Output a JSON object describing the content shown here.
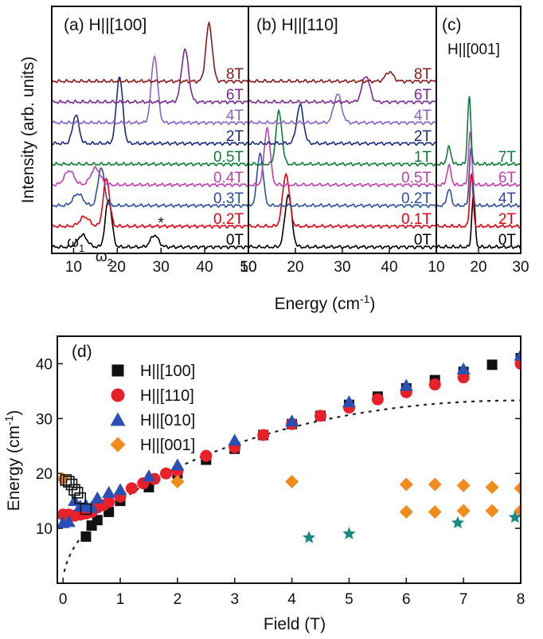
{
  "chart_data": [
    {
      "type": "line",
      "title": "",
      "ylabel": "Intensity (arb. units)",
      "xlabel": "Energy (cm⁻¹)",
      "xlabel_parts": {
        "main": "Energy (cm",
        "exp": "-1",
        "close": ")"
      },
      "panels": [
        {
          "id": "a",
          "label": "(a) H||[100]",
          "xlim": [
            5,
            50
          ],
          "xticks": [
            "10",
            "20",
            "30",
            "40",
            "50"
          ],
          "traces": [
            {
              "label": "0T",
              "color": "#000000",
              "peaks": [
                [
                  12,
                  0.25,
                  1.2
                ],
                [
                  18,
                  1.0,
                  0.8
                ],
                [
                  28.5,
                  0.25,
                  1.0
                ]
              ]
            },
            {
              "label": "0.2T",
              "color": "#e60012",
              "peaks": [
                [
                  12.5,
                  0.2,
                  1.2
                ],
                [
                  17.5,
                  1.0,
                  0.8
                ]
              ]
            },
            {
              "label": "0.3T",
              "color": "#2f4ea0",
              "peaks": [
                [
                  11,
                  0.25,
                  1.2
                ],
                [
                  16.3,
                  0.8,
                  0.8
                ]
              ]
            },
            {
              "label": "0.4T",
              "color": "#c040b0",
              "peaks": [
                [
                  9,
                  0.3,
                  1.2
                ],
                [
                  15,
                  0.35,
                  1.2
                ]
              ]
            },
            {
              "label": "0.5T",
              "color": "#0f7c3a",
              "peaks": []
            },
            {
              "label": "2T",
              "color": "#1c2a7a",
              "peaks": [
                [
                  10.5,
                  0.6,
                  0.8
                ],
                [
                  20.5,
                  1.4,
                  0.8
                ]
              ]
            },
            {
              "label": "4T",
              "color": "#8a62c8",
              "peaks": [
                [
                  28.5,
                  1.4,
                  0.8
                ]
              ]
            },
            {
              "label": "6T",
              "color": "#7a2a92",
              "peaks": [
                [
                  35.5,
                  1.1,
                  0.9
                ]
              ]
            },
            {
              "label": "8T",
              "color": "#8b1a1a",
              "peaks": [
                [
                  41,
                  1.2,
                  0.8
                ]
              ]
            }
          ],
          "annotations": [
            {
              "text": "ω",
              "sub": "1",
              "at": [
                10.5,
                -0.1
              ]
            },
            {
              "text": "ω",
              "sub": "2",
              "at": [
                17,
                -0.4
              ]
            },
            {
              "text": "*",
              "sub": "",
              "at": [
                30,
                0.3
              ]
            }
          ]
        },
        {
          "id": "b",
          "label": "(b) H||[110]",
          "xlim": [
            10,
            50
          ],
          "xticks": [
            "10",
            "20",
            "30",
            "40"
          ],
          "traces": [
            {
              "label": "0T",
              "color": "#000000",
              "peaks": [
                [
                  18.5,
                  1.1,
                  0.8
                ]
              ]
            },
            {
              "label": "0.1T",
              "color": "#e60012",
              "peaks": [
                [
                  18,
                  1.1,
                  0.8
                ]
              ]
            },
            {
              "label": "0.2T",
              "color": "#2f4ea0",
              "peaks": [
                [
                  12.5,
                  1.1,
                  0.7
                ]
              ]
            },
            {
              "label": "0.5T",
              "color": "#c040b0",
              "peaks": [
                [
                  14,
                  1.2,
                  0.7
                ]
              ]
            },
            {
              "label": "1T",
              "color": "#0f7c3a",
              "peaks": [
                [
                  16.5,
                  1.1,
                  0.7
                ]
              ]
            },
            {
              "label": "2T",
              "color": "#1c2a7a",
              "peaks": [
                [
                  21,
                  0.8,
                  0.8
                ]
              ]
            },
            {
              "label": "4T",
              "color": "#8a62c8",
              "peaks": [
                [
                  29,
                  0.6,
                  0.9
                ]
              ]
            },
            {
              "label": "6T",
              "color": "#7a2a92",
              "peaks": [
                [
                  35,
                  0.55,
                  0.9
                ]
              ]
            },
            {
              "label": "8T",
              "color": "#8b1a1a",
              "peaks": [
                [
                  40,
                  0.2,
                  0.9
                ]
              ]
            }
          ],
          "annotations": []
        },
        {
          "id": "c",
          "label": "(c)",
          "sublabel": "H||[001]",
          "xlim": [
            10,
            30
          ],
          "xticks": [
            "10",
            "20",
            "30"
          ],
          "traces": [
            {
              "label": "0T",
              "color": "#000000",
              "peaks": [
                [
                  18.8,
                  1.1,
                  0.7
                ]
              ]
            },
            {
              "label": "2T",
              "color": "#e60012",
              "peaks": [
                [
                  18.3,
                  1.1,
                  0.7
                ]
              ]
            },
            {
              "label": "4T",
              "color": "#2f4ea0",
              "peaks": [
                [
                  13,
                  0.35,
                  0.9
                ],
                [
                  18.2,
                  1.2,
                  0.7
                ]
              ]
            },
            {
              "label": "6T",
              "color": "#c040b0",
              "peaks": [
                [
                  13,
                  0.4,
                  0.9
                ],
                [
                  18,
                  1.1,
                  0.7
                ]
              ]
            },
            {
              "label": "7T",
              "color": "#0f7c3a",
              "peaks": [
                [
                  13,
                  0.35,
                  0.9
                ],
                [
                  17.8,
                  1.4,
                  0.7
                ]
              ]
            }
          ],
          "annotations": []
        }
      ]
    },
    {
      "type": "scatter",
      "title": "",
      "panel_label": "(d)",
      "xlabel": "Field (T)",
      "ylabel": "Energy (cm⁻¹)",
      "ylabel_parts": {
        "main": "Energy (cm",
        "exp": "-1",
        "close": ")"
      },
      "xlim": [
        -0.1,
        8
      ],
      "ylim": [
        0,
        45
      ],
      "xticks": [
        0,
        1,
        2,
        3,
        4,
        5,
        6,
        7,
        8
      ],
      "yticks": [
        10,
        20,
        30,
        40
      ],
      "legend_position": "top-left",
      "series": [
        {
          "name": "H||[100]",
          "marker": "square",
          "color": "#111111",
          "points": [
            [
              0.4,
              8.5
            ],
            [
              0.5,
              10.5
            ],
            [
              0.6,
              11.5
            ],
            [
              0.8,
              13
            ],
            [
              1,
              15
            ],
            [
              1.5,
              17.5
            ],
            [
              2,
              20
            ],
            [
              2.5,
              22.5
            ],
            [
              3,
              24.5
            ],
            [
              3.5,
              27
            ],
            [
              4,
              29
            ],
            [
              4.5,
              30.5
            ],
            [
              5,
              32.5
            ],
            [
              5.5,
              34
            ],
            [
              6,
              35.5
            ],
            [
              6.5,
              37
            ],
            [
              7,
              38.5
            ],
            [
              7.5,
              39.8
            ],
            [
              8,
              41
            ]
          ]
        },
        {
          "name": "H||[110]",
          "marker": "circle",
          "color": "#e8202a",
          "points": [
            [
              0,
              12.5
            ],
            [
              0.1,
              12.5
            ],
            [
              0.2,
              12.3
            ],
            [
              0.3,
              12.5
            ],
            [
              0.4,
              12.7
            ],
            [
              0.5,
              13
            ],
            [
              0.6,
              13.8
            ],
            [
              0.7,
              14.2
            ],
            [
              0.8,
              14.8
            ],
            [
              1,
              15.8
            ],
            [
              1.2,
              17.3
            ],
            [
              1.4,
              18.2
            ],
            [
              1.6,
              19
            ],
            [
              1.8,
              20
            ],
            [
              2,
              20.5
            ],
            [
              2.5,
              23.2
            ],
            [
              3,
              24.8
            ],
            [
              3.5,
              27
            ],
            [
              4,
              29
            ],
            [
              4.5,
              30.5
            ],
            [
              5,
              32
            ],
            [
              5.5,
              33.5
            ],
            [
              6,
              34.8
            ],
            [
              6.5,
              36.2
            ],
            [
              7,
              37.5
            ],
            [
              8,
              40
            ]
          ]
        },
        {
          "name": "H||[010]",
          "marker": "triangle",
          "color": "#2a4fb5",
          "points": [
            [
              0,
              11
            ],
            [
              0.1,
              11.2
            ],
            [
              0.2,
              15
            ],
            [
              0.3,
              14
            ],
            [
              0.4,
              14.2
            ],
            [
              0.5,
              13.8
            ],
            [
              0.6,
              15.5
            ],
            [
              0.8,
              16.5
            ],
            [
              1,
              17
            ],
            [
              1.5,
              19.5
            ],
            [
              2,
              21.5
            ],
            [
              3,
              26
            ],
            [
              4,
              29.5
            ],
            [
              5,
              33
            ],
            [
              6,
              36
            ],
            [
              7,
              39
            ],
            [
              8,
              41.5
            ]
          ]
        },
        {
          "name": "H||[001]",
          "marker": "diamond",
          "color": "#f08c1e",
          "points": [
            [
              0,
              19
            ],
            [
              2,
              18.5
            ],
            [
              4,
              18.5
            ],
            [
              6,
              18
            ],
            [
              6,
              13
            ],
            [
              6.5,
              18
            ],
            [
              6.5,
              13
            ],
            [
              7,
              17.8
            ],
            [
              7,
              13.2
            ],
            [
              7.5,
              17.5
            ],
            [
              7.5,
              13.2
            ],
            [
              8,
              17.3
            ],
            [
              8,
              13.2
            ]
          ]
        },
        {
          "name": "",
          "marker": "open-square",
          "color": "#111111",
          "points": [
            [
              0.05,
              18.8
            ],
            [
              0.1,
              18.5
            ],
            [
              0.15,
              18
            ],
            [
              0.2,
              17
            ],
            [
              0.25,
              16.5
            ],
            [
              0.3,
              15.5
            ],
            [
              0.4,
              13.5
            ]
          ]
        },
        {
          "name": "",
          "marker": "star",
          "color": "#1a8a80",
          "points": [
            [
              4.3,
              8.3
            ],
            [
              5,
              9
            ],
            [
              6.9,
              11
            ],
            [
              7.9,
              12
            ]
          ]
        }
      ],
      "fit_curve": {
        "style": "dashed",
        "color": "#222222"
      }
    }
  ]
}
